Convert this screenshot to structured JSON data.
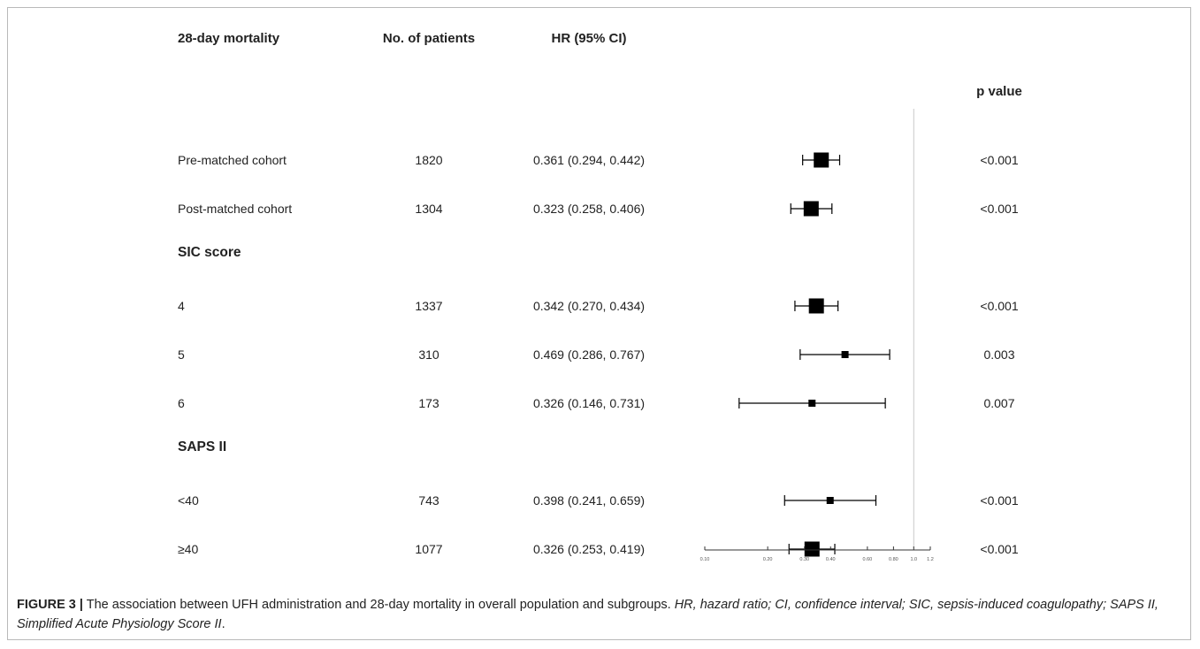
{
  "chart_data": {
    "type": "forest",
    "headers": {
      "label": "28-day mortality",
      "n": "No. of patients",
      "hr": "HR (95% CI)",
      "p": "p value"
    },
    "rows": [
      {
        "kind": "data",
        "label": "Pre-matched cohort",
        "n": "1820",
        "hr_text": "0.361 (0.294, 0.442)",
        "p": "<0.001",
        "hr": 0.361,
        "lo": 0.294,
        "hi": 0.442,
        "weight": "large"
      },
      {
        "kind": "data",
        "label": "Post-matched cohort",
        "n": "1304",
        "hr_text": "0.323 (0.258, 0.406)",
        "p": "<0.001",
        "hr": 0.323,
        "lo": 0.258,
        "hi": 0.406,
        "weight": "large"
      },
      {
        "kind": "group",
        "label": "SIC score"
      },
      {
        "kind": "data",
        "label": "4",
        "n": "1337",
        "hr_text": "0.342 (0.270, 0.434)",
        "p": "<0.001",
        "hr": 0.342,
        "lo": 0.27,
        "hi": 0.434,
        "weight": "large"
      },
      {
        "kind": "data",
        "label": "5",
        "n": "310",
        "hr_text": "0.469 (0.286, 0.767)",
        "p": "0.003",
        "hr": 0.469,
        "lo": 0.286,
        "hi": 0.767,
        "weight": "small"
      },
      {
        "kind": "data",
        "label": "6",
        "n": "173",
        "hr_text": "0.326 (0.146, 0.731)",
        "p": "0.007",
        "hr": 0.326,
        "lo": 0.146,
        "hi": 0.731,
        "weight": "small"
      },
      {
        "kind": "group",
        "label": "SAPS II"
      },
      {
        "kind": "data",
        "label": "<40",
        "n": "743",
        "hr_text": "0.398 (0.241, 0.659)",
        "p": "<0.001",
        "hr": 0.398,
        "lo": 0.241,
        "hi": 0.659,
        "weight": "small"
      },
      {
        "kind": "data",
        "label": "≥40",
        "n": "1077",
        "hr_text": "0.326 (0.253, 0.419)",
        "p": "<0.001",
        "hr": 0.326,
        "lo": 0.253,
        "hi": 0.419,
        "weight": "large"
      }
    ],
    "x_scale": "log",
    "xlim": [
      0.1,
      1.2
    ],
    "x_ticks": [
      {
        "value": 0.1,
        "label": "0.10"
      },
      {
        "value": 0.2,
        "label": "0.20"
      },
      {
        "value": 0.3,
        "label": "0.30"
      },
      {
        "value": 0.4,
        "label": "0.40"
      },
      {
        "value": 0.6,
        "label": "0.60"
      },
      {
        "value": 0.8,
        "label": "0.80"
      },
      {
        "value": 1.0,
        "label": "1.0"
      },
      {
        "value": 1.2,
        "label": "1.2"
      }
    ],
    "reference_line": 1.0
  },
  "caption": {
    "lead": "FIGURE 3 |",
    "text": " The association between UFH administration and 28-day mortality in overall population and subgroups. ",
    "italic": "HR, hazard ratio; CI, confidence interval; SIC, sepsis-induced coagulopathy; SAPS II, Simplified Acute Physiology Score II",
    "end": "."
  },
  "colors": {
    "marker": "#000000",
    "reference_line": "#c8c8c8",
    "frame": "#b9b9b9",
    "text": "#222222"
  }
}
